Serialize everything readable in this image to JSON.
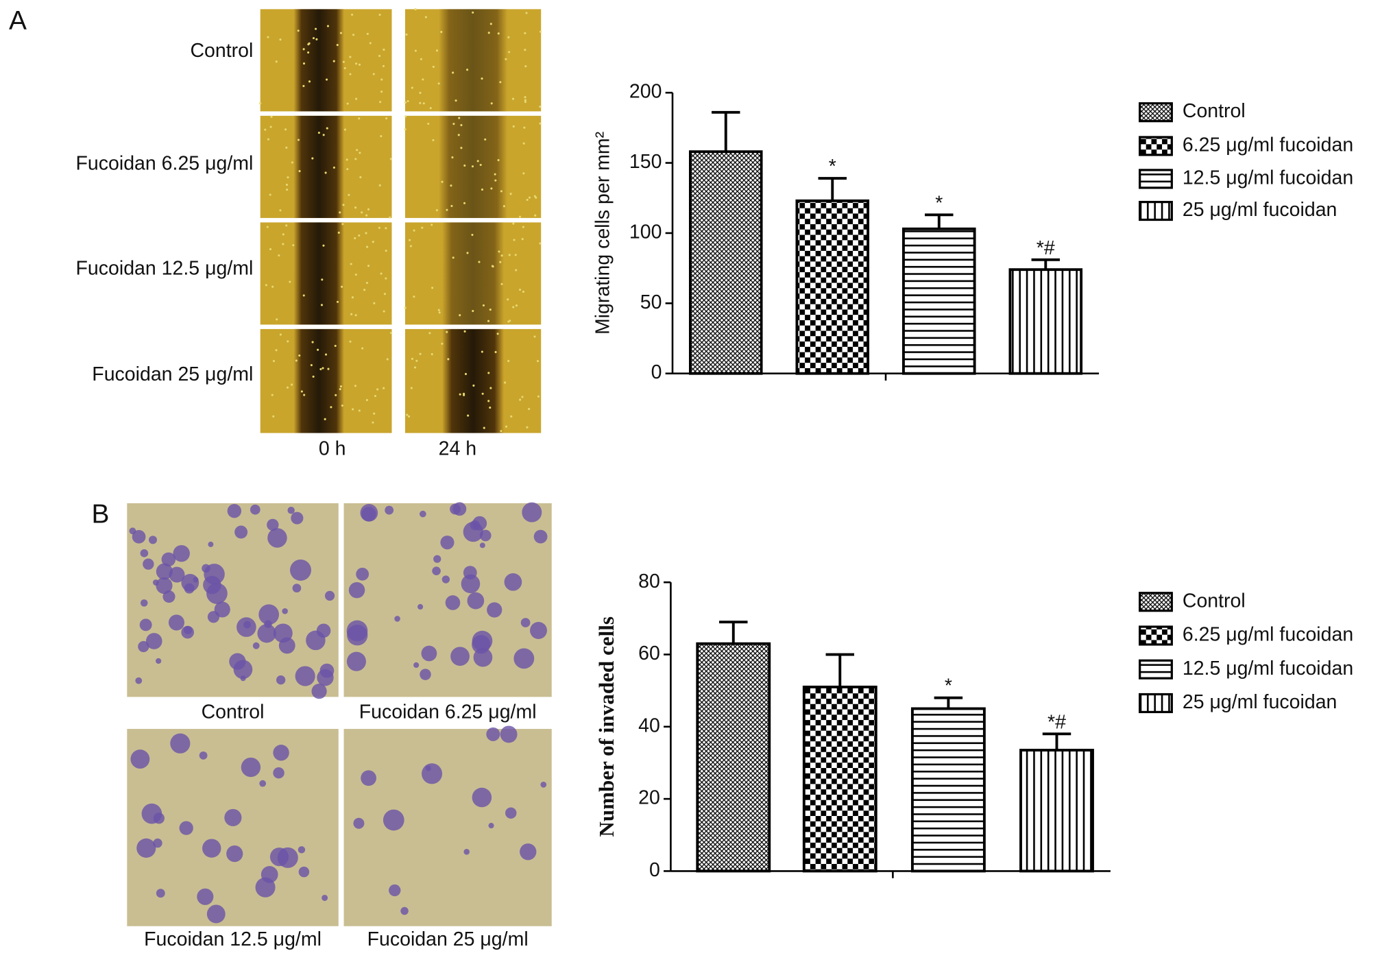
{
  "panel_a": {
    "label": "A",
    "row_labels": [
      "Control",
      "Fucoidan 6.25 μg/ml",
      "Fucoidan 12.5 μg/ml",
      "Fucoidan 25 μg/ml"
    ],
    "column_labels": [
      "0 h",
      "24 h"
    ]
  },
  "panel_b": {
    "label": "B",
    "image_labels": [
      "Control",
      "Fucoidan 6.25 μg/ml",
      "Fucoidan 12.5 μg/ml",
      "Fucoidan 25 μg/ml"
    ]
  },
  "chart_data": [
    {
      "type": "bar",
      "y_label": "Migrating cells per mm²",
      "categories": [
        "Control",
        "6.25 μg/ml fucoidan",
        "12.5 μg/ml fucoidan",
        "25 μg/ml fucoidan"
      ],
      "values": [
        158,
        123,
        103,
        74
      ],
      "errors": [
        28,
        16,
        10,
        7
      ],
      "annotations": [
        null,
        "*",
        "*",
        "*#"
      ],
      "patterns": [
        "crosshatch",
        "checker",
        "horizontal",
        "vertical"
      ],
      "color": "#000000",
      "ylim": [
        0,
        200
      ],
      "yticks": [
        0,
        50,
        100,
        150,
        200
      ],
      "grid": false
    },
    {
      "type": "bar",
      "y_label": "Number of invaded cells",
      "categories": [
        "Control",
        "6.25 μg/ml fucoidan",
        "12.5 μg/ml fucoidan",
        "25 μg/ml fucoidan"
      ],
      "values": [
        63,
        51,
        45,
        33.5
      ],
      "errors": [
        6,
        9,
        3,
        4.5
      ],
      "annotations": [
        null,
        null,
        "*",
        "*#"
      ],
      "patterns": [
        "crosshatch",
        "checker",
        "horizontal",
        "vertical"
      ],
      "color": "#000000",
      "ylim": [
        0,
        80
      ],
      "yticks": [
        0,
        20,
        40,
        60,
        80
      ],
      "grid": false
    }
  ]
}
